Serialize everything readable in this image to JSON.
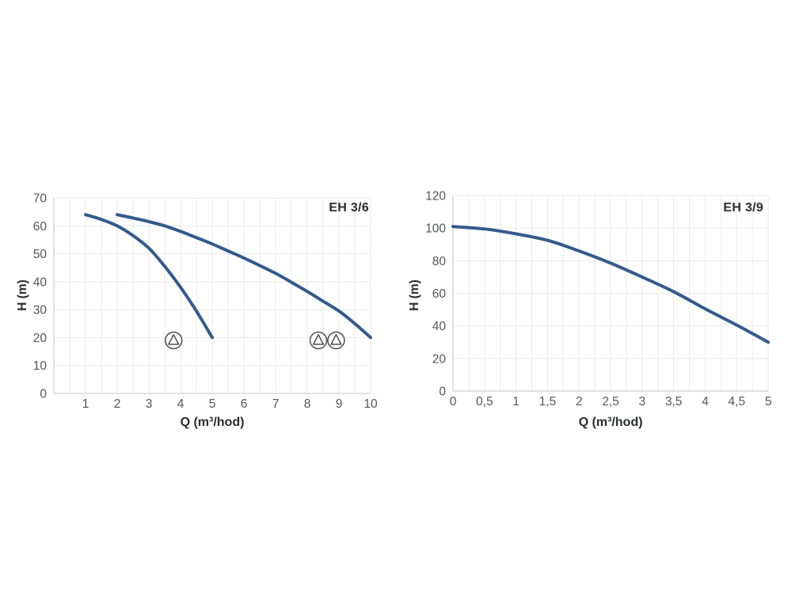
{
  "page": {
    "background": "#ffffff"
  },
  "colors": {
    "curve": "#355a8c",
    "grid": "#e9e9e7",
    "axis": "#cfcfcc",
    "tick_text": "#54555a",
    "label_text": "#2b2c30",
    "icon_stroke": "#4b4c50"
  },
  "chart_data": [
    {
      "type": "line",
      "title": "EH 3/6",
      "xlabel": "Q (m³/hod)",
      "ylabel": "H (m)",
      "xlim": [
        0,
        10
      ],
      "ylim": [
        0,
        70
      ],
      "x_grid_step": 0.5,
      "y_grid_step": 10,
      "grid": "on",
      "legend_position": "none",
      "x_tick_values": [
        1,
        2,
        3,
        4,
        5,
        6,
        7,
        8,
        9,
        10
      ],
      "x_tick_labels": [
        "1",
        "2",
        "3",
        "4",
        "5",
        "6",
        "7",
        "8",
        "9",
        "10"
      ],
      "y_tick_values": [
        0,
        10,
        20,
        30,
        40,
        50,
        60,
        70
      ],
      "y_tick_labels": [
        "0",
        "10",
        "20",
        "30",
        "40",
        "50",
        "60",
        "70"
      ],
      "series": [
        {
          "name": "single pump curve",
          "points": [
            [
              1,
              64
            ],
            [
              1.5,
              62.3
            ],
            [
              2,
              60
            ],
            [
              2.5,
              56.5
            ],
            [
              3,
              52
            ],
            [
              3.5,
              45.5
            ],
            [
              4,
              38
            ],
            [
              4.5,
              29.5
            ],
            [
              5,
              20
            ]
          ]
        },
        {
          "name": "twin pump curve",
          "points": [
            [
              2,
              64
            ],
            [
              2.5,
              62.8
            ],
            [
              3,
              61.5
            ],
            [
              3.5,
              60
            ],
            [
              4,
              58
            ],
            [
              4.5,
              55.8
            ],
            [
              5,
              53.5
            ],
            [
              5.5,
              51
            ],
            [
              6,
              48.5
            ],
            [
              6.5,
              45.8
            ],
            [
              7,
              43
            ],
            [
              7.5,
              39.8
            ],
            [
              8,
              36.5
            ],
            [
              8.5,
              33
            ],
            [
              9,
              29.5
            ],
            [
              9.5,
              25
            ],
            [
              10,
              20
            ]
          ]
        }
      ],
      "markers": [
        {
          "name": "single-pump-icon",
          "x_positions": [
            3.78
          ],
          "y": 19
        },
        {
          "name": "twin-pump-icon",
          "x_positions": [
            8.35,
            8.91
          ],
          "y": 19
        }
      ]
    },
    {
      "type": "line",
      "title": "EH 3/9",
      "xlabel": "Q (m³/hod)",
      "ylabel": "H (m)",
      "xlim": [
        0,
        5
      ],
      "ylim": [
        0,
        120
      ],
      "x_grid_step": 0.25,
      "y_grid_step": 20,
      "grid": "on",
      "legend_position": "none",
      "x_tick_values": [
        0,
        0.5,
        1,
        1.5,
        2,
        2.5,
        3,
        3.5,
        4,
        4.5,
        5
      ],
      "x_tick_labels": [
        "0",
        "0,5",
        "1",
        "1,5",
        "2",
        "2,5",
        "3",
        "3,5",
        "4",
        "4,5",
        "5"
      ],
      "y_tick_values": [
        0,
        20,
        40,
        60,
        80,
        100,
        120
      ],
      "y_tick_labels": [
        "0",
        "20",
        "40",
        "60",
        "80",
        "100",
        "120"
      ],
      "series": [
        {
          "name": "pump curve",
          "points": [
            [
              0,
              101
            ],
            [
              0.5,
              99.5
            ],
            [
              1,
              96.5
            ],
            [
              1.5,
              92.5
            ],
            [
              2,
              86
            ],
            [
              2.5,
              78.5
            ],
            [
              3,
              70
            ],
            [
              3.5,
              61
            ],
            [
              4,
              50.5
            ],
            [
              4.5,
              40.5
            ],
            [
              5,
              30
            ]
          ]
        }
      ],
      "markers": []
    }
  ]
}
